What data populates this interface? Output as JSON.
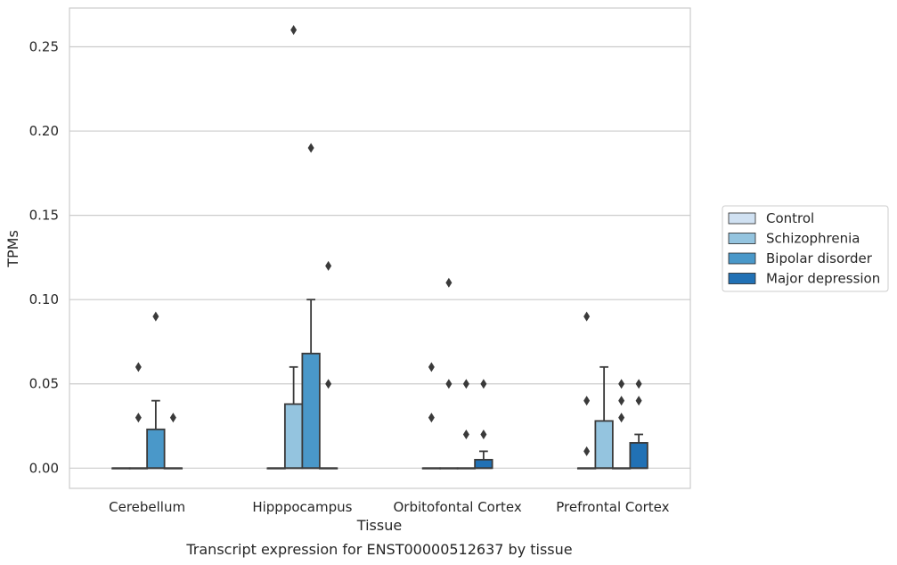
{
  "caption": "Transcript expression for ENST00000512637 by tissue",
  "chart_data": {
    "type": "box",
    "title": "",
    "xlabel": "Tissue",
    "ylabel": "TPMs",
    "ylim": [
      -0.012,
      0.273
    ],
    "y_ticks": [
      "0.00",
      "0.05",
      "0.10",
      "0.15",
      "0.20",
      "0.25"
    ],
    "y_tick_values": [
      0,
      0.05,
      0.1,
      0.15,
      0.2,
      0.25
    ],
    "grid": "horizontal",
    "legend_position": "outside right",
    "categories": [
      "Cerebellum",
      "Hipppocampus",
      "Orbitofontal Cortex",
      "Prefrontal Cortex"
    ],
    "series": [
      {
        "name": "Control",
        "color": "#d0e1f2",
        "boxes": [
          {
            "q1": 0,
            "median": 0,
            "q3": 0,
            "whisker_low": 0,
            "whisker_high": 0,
            "outliers": []
          },
          {
            "q1": 0,
            "median": 0,
            "q3": 0,
            "whisker_low": 0,
            "whisker_high": 0,
            "outliers": []
          },
          {
            "q1": 0,
            "median": 0,
            "q3": 0,
            "whisker_low": 0,
            "whisker_high": 0,
            "outliers": [
              0.06,
              0.03
            ]
          },
          {
            "q1": 0,
            "median": 0,
            "q3": 0,
            "whisker_low": 0,
            "whisker_high": 0,
            "outliers": [
              0.09,
              0.04,
              0.01
            ]
          }
        ]
      },
      {
        "name": "Schizophrenia",
        "color": "#94c4df",
        "boxes": [
          {
            "q1": 0,
            "median": 0,
            "q3": 0,
            "whisker_low": 0,
            "whisker_high": 0,
            "outliers": [
              0.06,
              0.03
            ]
          },
          {
            "q1": 0,
            "median": 0,
            "q3": 0.038,
            "whisker_low": 0,
            "whisker_high": 0.06,
            "outliers": [
              0.26
            ]
          },
          {
            "q1": 0,
            "median": 0,
            "q3": 0,
            "whisker_low": 0,
            "whisker_high": 0,
            "outliers": [
              0.11,
              0.05
            ]
          },
          {
            "q1": 0,
            "median": 0,
            "q3": 0.028,
            "whisker_low": 0,
            "whisker_high": 0.06,
            "outliers": []
          }
        ]
      },
      {
        "name": "Bipolar disorder",
        "color": "#4a98c9",
        "boxes": [
          {
            "q1": 0,
            "median": 0,
            "q3": 0.023,
            "whisker_low": 0,
            "whisker_high": 0.04,
            "outliers": [
              0.09
            ]
          },
          {
            "q1": 0,
            "median": 0,
            "q3": 0.068,
            "whisker_low": 0,
            "whisker_high": 0.1,
            "outliers": [
              0.19
            ]
          },
          {
            "q1": 0,
            "median": 0,
            "q3": 0,
            "whisker_low": 0,
            "whisker_high": 0,
            "outliers": [
              0.05,
              0.02
            ]
          },
          {
            "q1": 0,
            "median": 0,
            "q3": 0,
            "whisker_low": 0,
            "whisker_high": 0,
            "outliers": [
              0.05,
              0.04,
              0.03
            ]
          }
        ]
      },
      {
        "name": "Major depression",
        "color": "#2171b5",
        "boxes": [
          {
            "q1": 0,
            "median": 0,
            "q3": 0,
            "whisker_low": 0,
            "whisker_high": 0,
            "outliers": [
              0.03
            ]
          },
          {
            "q1": 0,
            "median": 0,
            "q3": 0,
            "whisker_low": 0,
            "whisker_high": 0,
            "outliers": [
              0.12,
              0.05
            ]
          },
          {
            "q1": 0,
            "median": 0,
            "q3": 0.005,
            "whisker_low": 0,
            "whisker_high": 0.01,
            "outliers": [
              0.05,
              0.02
            ]
          },
          {
            "q1": 0,
            "median": 0,
            "q3": 0.015,
            "whisker_low": 0,
            "whisker_high": 0.02,
            "outliers": [
              0.05,
              0.04
            ]
          }
        ]
      }
    ]
  }
}
